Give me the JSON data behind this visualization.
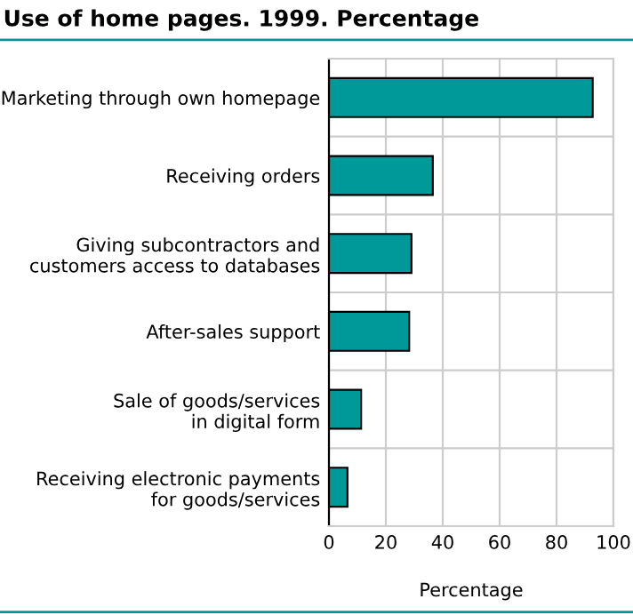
{
  "chart_data": {
    "type": "bar",
    "orientation": "horizontal",
    "title": "Use of home pages. 1999. Percentage",
    "xlabel": "Percentage",
    "categories": [
      "Marketing through own homepage",
      "Receiving orders",
      "Giving subcontractors and\ncustomers access to databases",
      "After-sales support",
      "Sale of goods/services\nin digital form",
      "Receiving electronic payments\nfor goods/services"
    ],
    "values": [
      92.7,
      36.5,
      29.0,
      28.2,
      11.3,
      6.5
    ],
    "color": "#009999",
    "xlim": [
      0,
      100
    ],
    "xticks": [
      0,
      20,
      40,
      60,
      80,
      100
    ],
    "grid": true
  }
}
